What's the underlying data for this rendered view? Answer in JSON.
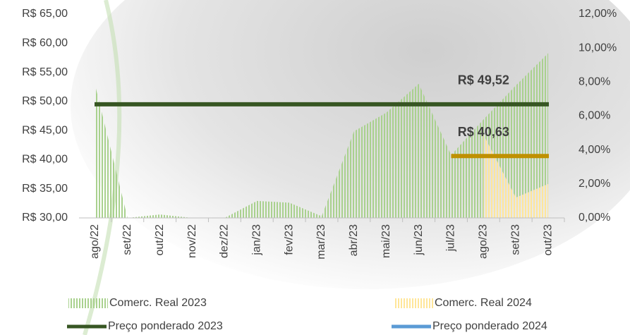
{
  "chart_data": {
    "type": "combo",
    "categories": [
      "ago/22",
      "set/22",
      "out/22",
      "nov/22",
      "dez/22",
      "jan/23",
      "fev/23",
      "mar/23",
      "abr/23",
      "mai/23",
      "jun/23",
      "jul/23",
      "ago/23",
      "set/23",
      "out/23"
    ],
    "ylim": [
      30,
      65
    ],
    "yticks": [
      {
        "value": 30,
        "label": "R$ 30,00"
      },
      {
        "value": 35,
        "label": "R$ 35,00"
      },
      {
        "value": 40,
        "label": "R$ 40,00"
      },
      {
        "value": 45,
        "label": "R$ 45,00"
      },
      {
        "value": 50,
        "label": "R$ 50,00"
      },
      {
        "value": 55,
        "label": "R$ 55,00"
      },
      {
        "value": 60,
        "label": "R$ 60,00"
      },
      {
        "value": 65,
        "label": "R$ 65,00"
      }
    ],
    "y2lim": [
      0,
      12
    ],
    "y2ticks": [
      {
        "value": 0,
        "label": "0,00%"
      },
      {
        "value": 2,
        "label": "2,00%"
      },
      {
        "value": 4,
        "label": "4,00%"
      },
      {
        "value": 6,
        "label": "6,00%"
      },
      {
        "value": 8,
        "label": "8,00%"
      },
      {
        "value": 10,
        "label": "10,00%"
      },
      {
        "value": 12,
        "label": "12,00%"
      }
    ],
    "series": [
      {
        "name": "Comerc. Real 2023",
        "type": "area",
        "axis": "y2",
        "color": "#a9d18e",
        "values": [
          7.8,
          0,
          0.2,
          0,
          0,
          1.0,
          0.9,
          0.1,
          5.1,
          6.2,
          7.9,
          3.7,
          5.8,
          7.8,
          9.7
        ]
      },
      {
        "name": "Comerc. Real 2024",
        "type": "area",
        "axis": "y2",
        "color": "#ffe699",
        "values": [
          null,
          null,
          null,
          null,
          null,
          null,
          null,
          null,
          null,
          null,
          null,
          null,
          4.9,
          1.2,
          2.0
        ]
      },
      {
        "name": "Preço ponderado 2023",
        "type": "line",
        "color": "#375623",
        "values": [
          49.52,
          49.52,
          49.52,
          49.52,
          49.52,
          49.52,
          49.52,
          49.52,
          49.52,
          49.52,
          49.52,
          49.52,
          49.52,
          49.52,
          49.52
        ],
        "value_labels": [
          null,
          null,
          null,
          null,
          null,
          null,
          null,
          null,
          null,
          null,
          null,
          null,
          "R$ 49,52",
          null,
          null
        ]
      },
      {
        "name": "Preço ponderado 2024",
        "type": "line",
        "color": "#bf9000",
        "legend_color": "#5b9bd5",
        "values": [
          null,
          null,
          null,
          null,
          null,
          null,
          null,
          null,
          null,
          null,
          null,
          40.63,
          40.63,
          40.63,
          40.63
        ],
        "value_labels": [
          null,
          null,
          null,
          null,
          null,
          null,
          null,
          null,
          null,
          null,
          null,
          null,
          "R$ 40,63",
          null,
          null
        ]
      }
    ]
  }
}
